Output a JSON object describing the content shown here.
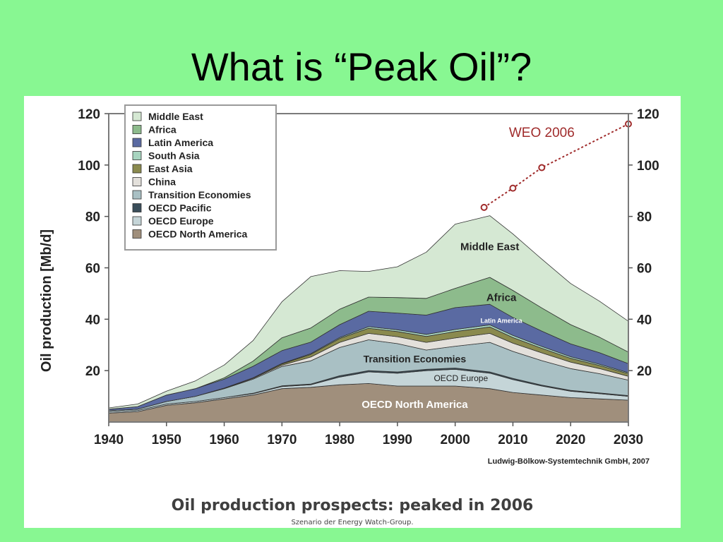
{
  "slide": {
    "title": "What is “Peak Oil”?"
  },
  "caption": {
    "main": "Oil production prospects: peaked in 2006",
    "sub": "Szenario der Energy Watch-Group."
  },
  "colors": {
    "slide_background": "#88f792",
    "weo_line": "#a02c2c",
    "frame": "#808080"
  },
  "chart_data": {
    "type": "area",
    "stacked": true,
    "ylabel": "Oil production [Mb/d]",
    "ylim": [
      0,
      120
    ],
    "xlim": [
      1940,
      2030
    ],
    "x_ticks": [
      1940,
      1950,
      1960,
      1970,
      1980,
      1990,
      2000,
      2010,
      2020,
      2030
    ],
    "y_ticks": [
      20,
      40,
      60,
      80,
      100,
      120
    ],
    "grid": false,
    "legend_position": "top-left",
    "source": "Ludwig-Bölkow-Systemtechnik GmbH, 2007",
    "legend": [
      "Middle East",
      "Africa",
      "Latin America",
      "South Asia",
      "East Asia",
      "China",
      "Transition Economies",
      "OECD Pacific",
      "OECD Europe",
      "OECD North America"
    ],
    "x": [
      1940,
      1945,
      1950,
      1955,
      1960,
      1965,
      1970,
      1975,
      1980,
      1985,
      1990,
      1995,
      2000,
      2006,
      2010,
      2015,
      2020,
      2025,
      2030
    ],
    "series": [
      {
        "name": "OECD North America",
        "color": "#a08f7c",
        "values": [
          3.5,
          4,
          6.5,
          7.5,
          9,
          10.5,
          13,
          13.5,
          14.5,
          15,
          14,
          14,
          14,
          13,
          11.5,
          10.5,
          9.5,
          9,
          8.5
        ]
      },
      {
        "name": "OECD Europe",
        "color": "#c5d5d8",
        "values": [
          0.5,
          0.5,
          0.5,
          0.5,
          0.5,
          0.5,
          0.8,
          1,
          3,
          4.5,
          5,
          6,
          6.5,
          6,
          5,
          3.5,
          2.5,
          2,
          1.5
        ]
      },
      {
        "name": "OECD Pacific",
        "color": "#3a4e5a",
        "values": [
          0,
          0,
          0,
          0,
          0,
          0.2,
          0.3,
          0.3,
          0.5,
          0.5,
          0.5,
          0.5,
          0.5,
          0.5,
          0.5,
          0.4,
          0.3,
          0.3,
          0.3
        ]
      },
      {
        "name": "Transition Economies",
        "color": "#a9c0c4",
        "values": [
          0.5,
          0.5,
          1,
          2,
          3.5,
          5.5,
          7.5,
          9,
          11,
          12,
          11,
          7.5,
          8.5,
          11.5,
          10.5,
          9.5,
          8.5,
          7.5,
          6
        ]
      },
      {
        "name": "China",
        "color": "#e3e0db",
        "values": [
          0,
          0,
          0,
          0,
          0.1,
          0.3,
          0.5,
          1.5,
          2,
          2.5,
          2.7,
          3,
          3.2,
          3.5,
          3.2,
          3,
          2.5,
          2,
          1.5
        ]
      },
      {
        "name": "East Asia",
        "color": "#8a8a4e",
        "values": [
          0,
          0,
          0,
          0,
          0.1,
          0.2,
          0.5,
          1,
          1.5,
          2,
          2,
          2.3,
          2.5,
          2.5,
          2.2,
          1.8,
          1.5,
          1.2,
          1
        ]
      },
      {
        "name": "South Asia",
        "color": "#a7d4bf",
        "values": [
          0,
          0,
          0,
          0,
          0,
          0,
          0.2,
          0.3,
          0.4,
          0.6,
          0.7,
          0.8,
          0.8,
          0.8,
          0.8,
          0.7,
          0.6,
          0.5,
          0.4
        ]
      },
      {
        "name": "Latin America",
        "color": "#5a6aa2",
        "values": [
          0.5,
          1,
          2.5,
          3,
          3.5,
          4.5,
          5,
          4.5,
          5,
          6,
          6.5,
          7.5,
          8.5,
          8,
          7,
          6,
          5,
          4.5,
          3.5
        ]
      },
      {
        "name": "Africa",
        "color": "#8dbb8c",
        "values": [
          0,
          0,
          0,
          0,
          0.5,
          2,
          5,
          5.5,
          6,
          5.5,
          6,
          6.5,
          7.5,
          10.5,
          10.5,
          9,
          7.5,
          6,
          4.5
        ]
      },
      {
        "name": "Middle East",
        "color": "#d5e8d3",
        "values": [
          0.5,
          1,
          1.5,
          3,
          5,
          8,
          14,
          20,
          15,
          10,
          12,
          18,
          25,
          24,
          22,
          19,
          16,
          14,
          12
        ]
      }
    ],
    "labels": [
      "Middle East",
      "Africa",
      "Latin America",
      "Transition Economies",
      "OECD Europe",
      "OECD North America"
    ],
    "overlay_series": {
      "name": "WEO 2006",
      "x": [
        2005,
        2010,
        2015,
        2030
      ],
      "values": [
        83.5,
        91,
        99,
        116
      ]
    }
  }
}
